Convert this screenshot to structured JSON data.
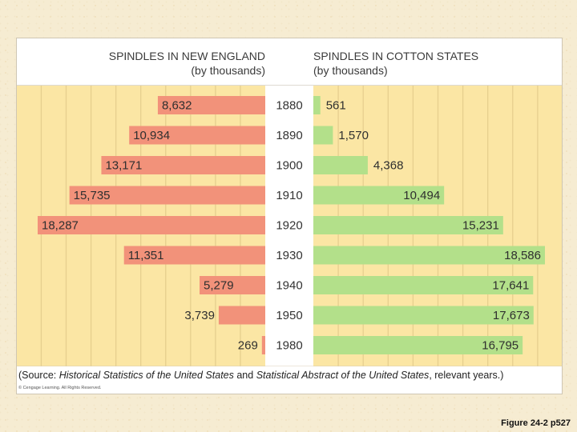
{
  "chart_data": {
    "type": "bar",
    "layout": "back-to-back horizontal bar chart",
    "categories": [
      "1880",
      "1890",
      "1900",
      "1910",
      "1920",
      "1930",
      "1940",
      "1950",
      "1980"
    ],
    "series": [
      {
        "name": "Spindles in New England",
        "title": "SPINDLES IN NEW ENGLAND",
        "subtitle": "(by thousands)",
        "direction": "left",
        "color": "#f2927a",
        "values": [
          8632,
          10934,
          13171,
          15735,
          18287,
          11351,
          5279,
          3739,
          269
        ],
        "labels": [
          "8,632",
          "10,934",
          "13,171",
          "15,735",
          "18,287",
          "11,351",
          "5,279",
          "3,739",
          "269"
        ]
      },
      {
        "name": "Spindles in Cotton States",
        "title": "SPINDLES IN COTTON STATES",
        "subtitle": "(by thousands)",
        "direction": "right",
        "color": "#b3e08a",
        "values": [
          561,
          1570,
          4368,
          10494,
          15231,
          18586,
          17641,
          17673,
          16795
        ],
        "labels": [
          "561",
          "1,570",
          "4,368",
          "10,494",
          "15,231",
          "18,586",
          "17,641",
          "17,673",
          "16,795"
        ]
      }
    ],
    "xlim": [
      0,
      19000
    ],
    "units": "thousands of spindles",
    "grid": true
  },
  "source": {
    "prefix": "(Source: ",
    "title1": "Historical Statistics of the United States",
    "middle": " and ",
    "title2": "Statistical Abstract of the United States",
    "suffix": ", relevant years.)"
  },
  "copyright": "© Cengage Learning. All Rights Reserved.",
  "caption": "Figure 24-2 p527",
  "colors": {
    "panel": "#fbe6a4",
    "grid": "#e6cf8e",
    "year_band": "#ffffff",
    "new_england_bar": "#f2927a",
    "cotton_states_bar": "#b3e08a"
  }
}
